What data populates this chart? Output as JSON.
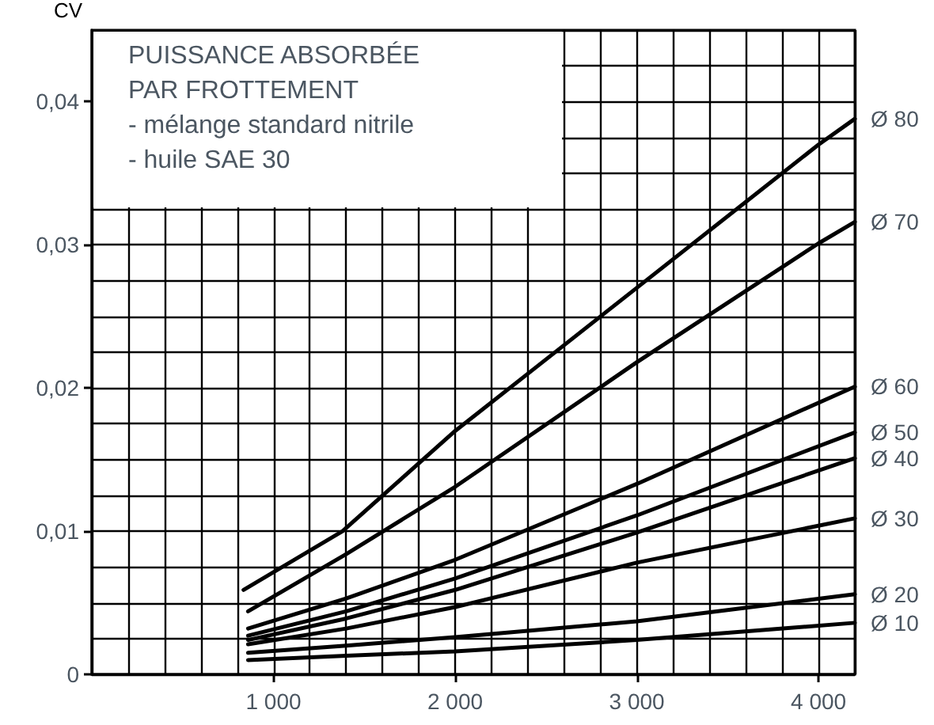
{
  "chart_data": {
    "type": "line",
    "title": "PUISSANCE ABSORBÉE PAR FROTTEMENT",
    "annotations": [
      "- mélange standard nitrile",
      "- huile SAE 30"
    ],
    "ylabel": "CV",
    "xlim": [
      0,
      4200
    ],
    "xticks": [
      {
        "value": 0,
        "label": null
      },
      {
        "value": 200,
        "label": null
      },
      {
        "value": 400,
        "label": null
      },
      {
        "value": 600,
        "label": null
      },
      {
        "value": 800,
        "label": null
      },
      {
        "value": 1000,
        "label": "1 000"
      },
      {
        "value": 1200,
        "label": null
      },
      {
        "value": 1400,
        "label": null
      },
      {
        "value": 1600,
        "label": null
      },
      {
        "value": 1800,
        "label": null
      },
      {
        "value": 2000,
        "label": "2 000"
      },
      {
        "value": 2200,
        "label": null
      },
      {
        "value": 2400,
        "label": null
      },
      {
        "value": 2600,
        "label": null
      },
      {
        "value": 2800,
        "label": null
      },
      {
        "value": 3000,
        "label": "3 000"
      },
      {
        "value": 3200,
        "label": null
      },
      {
        "value": 3400,
        "label": null
      },
      {
        "value": 3600,
        "label": null
      },
      {
        "value": 3800,
        "label": null
      },
      {
        "value": 4000,
        "label": "4 000"
      },
      {
        "value": 4200,
        "label": null
      }
    ],
    "ylim": [
      0,
      0.045
    ],
    "yticks": [
      0,
      {
        "value": 0.0025,
        "label": null
      },
      {
        "value": 0.005,
        "label": null
      },
      {
        "value": 0.0075,
        "label": null
      },
      {
        "value": 0.01,
        "label": "0,01"
      },
      {
        "value": 0.0125,
        "label": null
      },
      {
        "value": 0.015,
        "label": null
      },
      {
        "value": 0.0175,
        "label": null
      },
      {
        "value": 0.02,
        "label": "0,02"
      },
      {
        "value": 0.0225,
        "label": null
      },
      {
        "value": 0.025,
        "label": null
      },
      {
        "value": 0.0275,
        "label": null
      },
      {
        "value": 0.03,
        "label": "0,03"
      },
      {
        "value": 0.0325,
        "label": null
      },
      {
        "value": 0.035,
        "label": null
      },
      {
        "value": 0.0375,
        "label": null
      },
      {
        "value": 0.04,
        "label": "0,04"
      },
      {
        "value": 0.0425,
        "label": null
      },
      {
        "value": 0.045,
        "label": null
      }
    ],
    "grid": true,
    "legend": false,
    "marker": "none",
    "line_style": "solid",
    "series": [
      {
        "name": "Ø 80",
        "color": "#000000",
        "x": [
          835,
          1380,
          2000,
          2450,
          3000,
          4000,
          4200
        ],
        "values": [
          0.0059,
          0.01,
          0.017,
          0.0215,
          0.027,
          0.037,
          0.0388
        ]
      },
      {
        "name": "Ø 70",
        "color": "#000000",
        "x": [
          860,
          1400,
          2000,
          3000,
          4000,
          4200
        ],
        "values": [
          0.0044,
          0.0084,
          0.0131,
          0.0218,
          0.0301,
          0.0316
        ]
      },
      {
        "name": "Ø 60",
        "color": "#000000",
        "x": [
          860,
          1400,
          2000,
          3000,
          4200
        ],
        "values": [
          0.0032,
          0.0053,
          0.008,
          0.0133,
          0.0201
        ]
      },
      {
        "name": "Ø 50",
        "color": "#000000",
        "x": [
          860,
          1400,
          2000,
          3000,
          4200
        ],
        "values": [
          0.0027,
          0.0044,
          0.0067,
          0.0111,
          0.0169
        ]
      },
      {
        "name": "Ø 40",
        "color": "#000000",
        "x": [
          860,
          1400,
          2000,
          3000,
          4200
        ],
        "values": [
          0.0024,
          0.0039,
          0.0059,
          0.0099,
          0.0151
        ]
      },
      {
        "name": "Ø 30",
        "color": "#000000",
        "x": [
          860,
          1400,
          2000,
          3000,
          4200
        ],
        "values": [
          0.0021,
          0.0032,
          0.0047,
          0.0078,
          0.0109
        ]
      },
      {
        "name": "Ø 20",
        "color": "#000000",
        "x": [
          860,
          1400,
          2000,
          3000,
          4200
        ],
        "values": [
          0.0015,
          0.002,
          0.0026,
          0.0037,
          0.0056
        ]
      },
      {
        "name": "Ø 10",
        "color": "#000000",
        "x": [
          860,
          1400,
          2000,
          3000,
          4200
        ],
        "values": [
          0.001,
          0.0013,
          0.0016,
          0.0024,
          0.0036
        ]
      }
    ]
  }
}
